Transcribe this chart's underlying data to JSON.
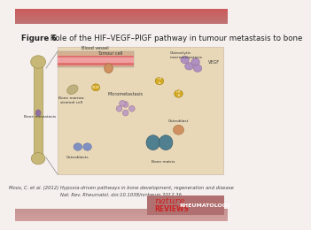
{
  "title_bold": "Figure 6",
  "title_normal": " Role of the HIF–VEGF–PlGF pathway in tumour metastasis to bone",
  "citation_line1": "Moos, C. et al. (2012) Hypoxia-driven pathways in bone development, regeneration and disease",
  "citation_line2": "Nat. Rev. Rheumatol. doi:10.1038/nrrheum.2012.36",
  "page_bg": "#f5f0ee",
  "bone_color": "#c8b878",
  "bone_edge": "#a09050",
  "diagram_bg": "#e8d8b8",
  "diagram_edge": "#ccbbaa",
  "bv_bg": "#d4b090",
  "bv_red": "#e07070",
  "bv_pink": "#f0a0a0",
  "met_face": "#9070a0",
  "met_edge": "#705080",
  "nature_red": "#cc2222",
  "logo_bg": "#b07070"
}
